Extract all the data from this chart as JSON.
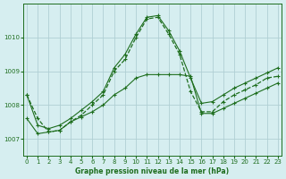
{
  "title": "Graphe pression niveau de la mer (hPa)",
  "background_color": "#d6eef0",
  "line_color": "#1e6e1e",
  "grid_color": "#b0cfd4",
  "x_ticks": [
    0,
    1,
    2,
    3,
    4,
    5,
    6,
    7,
    8,
    9,
    10,
    11,
    12,
    13,
    14,
    15,
    16,
    17,
    18,
    19,
    20,
    21,
    22,
    23
  ],
  "y_ticks": [
    1007,
    1008,
    1009,
    1010
  ],
  "ylim": [
    1006.5,
    1011.0
  ],
  "xlim": [
    -0.3,
    23.3
  ],
  "main_series": [
    1008.3,
    1007.6,
    1007.2,
    1007.25,
    1007.5,
    1007.7,
    1008.0,
    1008.3,
    1009.0,
    1009.35,
    1010.0,
    1010.55,
    1010.6,
    1010.1,
    1009.5,
    1008.4,
    1007.8,
    1007.8,
    1008.1,
    1008.3,
    1008.45,
    1008.6,
    1008.8,
    1008.85
  ],
  "min_series": [
    1007.6,
    1007.15,
    1007.2,
    1007.25,
    1007.5,
    1007.65,
    1007.8,
    1008.0,
    1008.3,
    1008.5,
    1008.8,
    1008.9,
    1008.9,
    1008.9,
    1008.9,
    1008.85,
    1007.75,
    1007.75,
    1007.9,
    1008.05,
    1008.2,
    1008.35,
    1008.5,
    1008.65
  ],
  "max_series": [
    1008.3,
    1007.4,
    1007.3,
    1007.4,
    1007.6,
    1007.85,
    1008.1,
    1008.4,
    1009.1,
    1009.5,
    1010.1,
    1010.6,
    1010.65,
    1010.2,
    1009.6,
    1008.8,
    1008.05,
    1008.1,
    1008.3,
    1008.5,
    1008.65,
    1008.8,
    1008.95,
    1009.1
  ]
}
